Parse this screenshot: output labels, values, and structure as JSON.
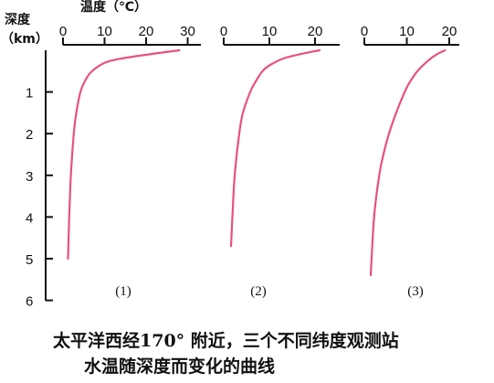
{
  "chart_data": {
    "type": "line",
    "x_axis_label": "温度（℃）",
    "y_axis_label": "深度",
    "y_axis_unit": "（km）",
    "y_ticks": [
      1,
      2,
      3,
      4,
      5,
      6
    ],
    "ylim": [
      0,
      6
    ],
    "caption_line1": "太平洋西经170° 附近，三个不同纬度观测站",
    "caption_line2": "水温随深度而变化的曲线",
    "line_color": "#e8527a",
    "panels": [
      {
        "label": "(1)",
        "x_ticks": [
          0,
          10,
          20,
          30
        ],
        "xlim": [
          0,
          30
        ],
        "series": {
          "depth_km": [
            0,
            0.1,
            0.2,
            0.3,
            0.5,
            0.7,
            1.0,
            1.5,
            2.0,
            3.0,
            4.0,
            5.0
          ],
          "temperature_c": [
            28,
            20.5,
            14,
            10,
            7,
            5.5,
            4.2,
            3.2,
            2.6,
            1.9,
            1.5,
            1.2
          ]
        }
      },
      {
        "label": "(2)",
        "x_ticks": [
          0,
          10,
          20
        ],
        "xlim": [
          0,
          25
        ],
        "series": {
          "depth_km": [
            0,
            0.1,
            0.2,
            0.35,
            0.5,
            0.75,
            1.0,
            1.5,
            2.0,
            3.0,
            4.0,
            4.7
          ],
          "temperature_c": [
            21,
            16.5,
            13,
            10.2,
            8.5,
            7,
            5.8,
            4.2,
            3.4,
            2.4,
            1.9,
            1.6
          ]
        }
      },
      {
        "label": "(3)",
        "x_ticks": [
          0,
          10,
          20
        ],
        "xlim": [
          0,
          20
        ],
        "series": {
          "depth_km": [
            0,
            0.1,
            0.25,
            0.5,
            0.8,
            1.0,
            1.5,
            2.0,
            2.5,
            3.0,
            4.0,
            5.4
          ],
          "temperature_c": [
            19,
            17,
            15,
            12.5,
            10.5,
            9.5,
            7.5,
            5.8,
            4.5,
            3.5,
            2.3,
            1.5
          ]
        }
      }
    ]
  }
}
